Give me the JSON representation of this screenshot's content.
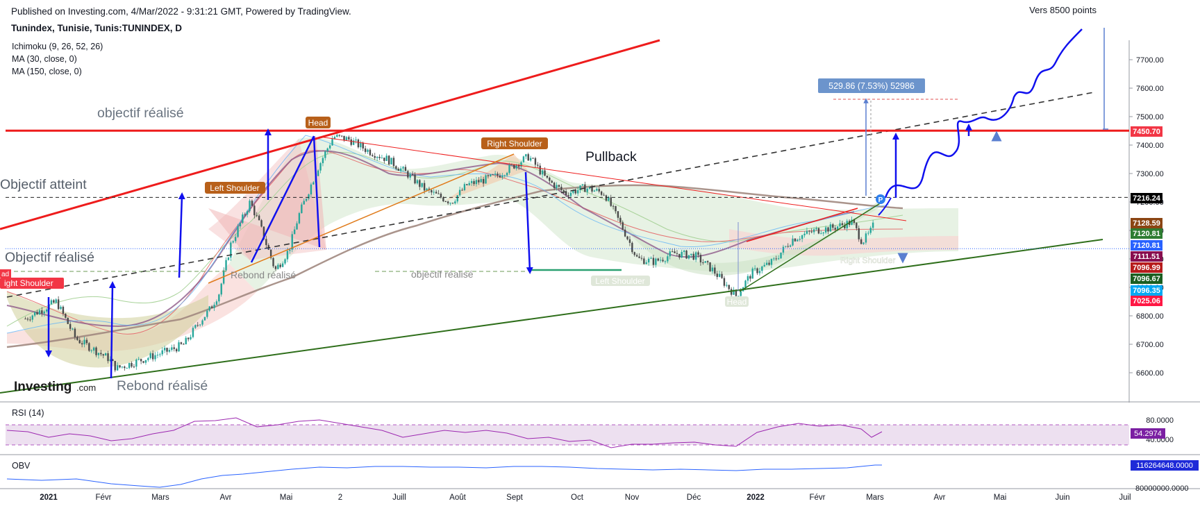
{
  "header": {
    "published": "Published on Investing.com, 4/Mar/2022 - 9:31:21 GMT, Powered by TradingView.",
    "symbol": "Tunindex, Tunisie, Tunis:TUNINDEX, D"
  },
  "indicators": [
    "Ichimoku (9, 26, 52, 26)",
    "MA (30, close, 0)",
    "MA (150, close, 0)"
  ],
  "logo": {
    "word": "Investing",
    "suffix": ".com"
  },
  "annotations": {
    "objectif_realise_top": "objectif réalisé",
    "objectif_atteint": "Objectif atteint",
    "objectif_realise_left": "Objectif réalisé",
    "objectif_realise_mid": "objectif réalisé",
    "rebond_realise_small": "Rebond réalisé",
    "rebond_realise_big": "Rebond réalisé",
    "pullback": "Pullback",
    "vers": "Vers 8500 points",
    "measure": "529.86 (7.53%) 52986",
    "head_1": "Head",
    "left_shoulder_1": "Left Shoulder",
    "right_shoulder_1": "Right Shoulder",
    "right_shoulder_0": "ight Shoulder",
    "left_shoulder_2": "Left Shoulder",
    "head_2": "Head",
    "right_shoulder_2": "Right Shoulder",
    "p_marker": "P",
    "left_edge_tag": "ad"
  },
  "price_tags": [
    {
      "label": "7450.70",
      "value": 7450.7,
      "color": "#f23645"
    },
    {
      "label": "7216.24",
      "value": 7216.24,
      "color": "#000000"
    },
    {
      "label": "7128.59",
      "value": 7128.59,
      "color": "#8b4513"
    },
    {
      "label": "7120.81",
      "value": 7120.81,
      "color": "#2e7d32"
    },
    {
      "label": "7120.81",
      "value": 7120.81,
      "color": "#2962ff"
    },
    {
      "label": "7111.51",
      "value": 7111.51,
      "color": "#880e4f"
    },
    {
      "label": "7096.99",
      "value": 7096.99,
      "color": "#b71c1c"
    },
    {
      "label": "7096.67",
      "value": 7096.67,
      "color": "#1b5e20"
    },
    {
      "label": "7096.35",
      "value": 7096.35,
      "color": "#03a9f4"
    },
    {
      "label": "7025.06",
      "value": 7025.06,
      "color": "#ff1744"
    }
  ],
  "rsi": {
    "title": "RSI (14)",
    "value_label": "54.2974",
    "ticks": [
      "80.0000",
      "40.0000"
    ]
  },
  "obv": {
    "title": "OBV",
    "value_label": "116264648.0000",
    "cut_tick": "80000000.0000"
  },
  "chart_data": {
    "type": "candlestick",
    "title": "Tunindex, Tunisie, Tunis:TUNINDEX, D",
    "y_axis": {
      "ticks": [
        6600,
        6700,
        6800,
        6900,
        7000,
        7100,
        7200,
        7300,
        7400,
        7500,
        7600,
        7700
      ],
      "ylim": [
        6530,
        7790
      ]
    },
    "x_axis": {
      "ticks": [
        "2021",
        "Févr",
        "Mars",
        "Avr",
        "Mai",
        "2",
        "Juill",
        "Août",
        "Sept",
        "Oct",
        "Nov",
        "Déc",
        "2022",
        "Févr",
        "Mars",
        "Avr",
        "Mai",
        "Juin",
        "Juil"
      ]
    },
    "price_path": [
      {
        "d": "2020-12-20",
        "v": 6790
      },
      {
        "d": "2021-01-05",
        "v": 6850
      },
      {
        "d": "2021-01-15",
        "v": 6720
      },
      {
        "d": "2021-02-01",
        "v": 6650
      },
      {
        "d": "2021-02-05",
        "v": 6615
      },
      {
        "d": "2021-02-20",
        "v": 6650
      },
      {
        "d": "2021-03-05",
        "v": 6680
      },
      {
        "d": "2021-03-12",
        "v": 6700
      },
      {
        "d": "2021-03-20",
        "v": 6780
      },
      {
        "d": "2021-03-25",
        "v": 6820
      },
      {
        "d": "2021-03-30",
        "v": 6880
      },
      {
        "d": "2021-04-05",
        "v": 7050
      },
      {
        "d": "2021-04-15",
        "v": 7200
      },
      {
        "d": "2021-04-20",
        "v": 7120
      },
      {
        "d": "2021-04-28",
        "v": 6960
      },
      {
        "d": "2021-05-05",
        "v": 7030
      },
      {
        "d": "2021-05-10",
        "v": 7150
      },
      {
        "d": "2021-05-20",
        "v": 7320
      },
      {
        "d": "2021-05-28",
        "v": 7430
      },
      {
        "d": "2021-06-05",
        "v": 7420
      },
      {
        "d": "2021-06-15",
        "v": 7380
      },
      {
        "d": "2021-06-25",
        "v": 7350
      },
      {
        "d": "2021-07-05",
        "v": 7300
      },
      {
        "d": "2021-07-15",
        "v": 7240
      },
      {
        "d": "2021-07-28",
        "v": 7200
      },
      {
        "d": "2021-08-05",
        "v": 7260
      },
      {
        "d": "2021-08-20",
        "v": 7290
      },
      {
        "d": "2021-09-01",
        "v": 7340
      },
      {
        "d": "2021-09-06",
        "v": 7360
      },
      {
        "d": "2021-09-15",
        "v": 7280
      },
      {
        "d": "2021-09-25",
        "v": 7230
      },
      {
        "d": "2021-10-05",
        "v": 7250
      },
      {
        "d": "2021-10-15",
        "v": 7230
      },
      {
        "d": "2021-10-25",
        "v": 7100
      },
      {
        "d": "2021-11-01",
        "v": 7000
      },
      {
        "d": "2021-11-10",
        "v": 6990
      },
      {
        "d": "2021-11-20",
        "v": 7020
      },
      {
        "d": "2021-12-01",
        "v": 7010
      },
      {
        "d": "2021-12-10",
        "v": 6960
      },
      {
        "d": "2021-12-22",
        "v": 6870
      },
      {
        "d": "2021-12-30",
        "v": 6950
      },
      {
        "d": "2022-01-10",
        "v": 6990
      },
      {
        "d": "2022-01-20",
        "v": 7070
      },
      {
        "d": "2022-02-01",
        "v": 7100
      },
      {
        "d": "2022-02-10",
        "v": 7110
      },
      {
        "d": "2022-02-20",
        "v": 7130
      },
      {
        "d": "2022-02-25",
        "v": 7060
      },
      {
        "d": "2022-03-01",
        "v": 7090
      },
      {
        "d": "2022-03-03",
        "v": 7120
      }
    ],
    "horizontal_levels": [
      7450.7,
      7216.24
    ],
    "target": 8500
  }
}
